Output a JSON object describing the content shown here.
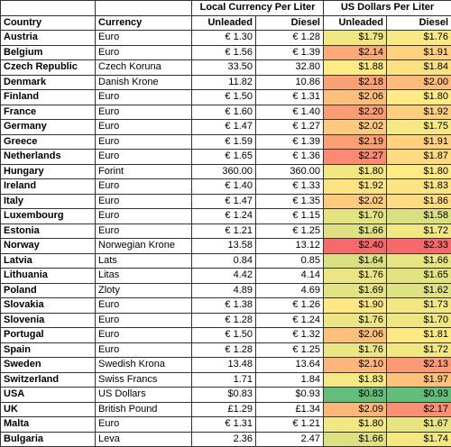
{
  "table": {
    "group_headers": [
      "Local Currency Per Liter",
      "US Dollars Per Liter"
    ],
    "columns": [
      "Country",
      "Currency",
      "Unleaded",
      "Diesel",
      "Unleaded",
      "Diesel"
    ],
    "rows": [
      [
        "Austria",
        "Euro",
        "€ 1.30",
        "€ 1.28",
        "$1.79",
        "$1.76"
      ],
      [
        "Belgium",
        "Euro",
        "€ 1.56",
        "€ 1.39",
        "$2.14",
        "$1.91"
      ],
      [
        "Czech Republic",
        "Czech Koruna",
        "33.50",
        "32.80",
        "$1.88",
        "$1.84"
      ],
      [
        "Denmark",
        "Danish Krone",
        "11.82",
        "10.86",
        "$2.18",
        "$2.00"
      ],
      [
        "Finland",
        "Euro",
        "€ 1.50",
        "€ 1.31",
        "$2.06",
        "$1.80"
      ],
      [
        "France",
        "Euro",
        "€ 1.60",
        "€ 1.40",
        "$2.20",
        "$1.92"
      ],
      [
        "Germany",
        "Euro",
        "€ 1.47",
        "€ 1.27",
        "$2.02",
        "$1.75"
      ],
      [
        "Greece",
        "Euro",
        "€ 1.59",
        "€ 1.39",
        "$2.19",
        "$1.91"
      ],
      [
        "Netherlands",
        "Euro",
        "€ 1.65",
        "€ 1.36",
        "$2.27",
        "$1.87"
      ],
      [
        "Hungary",
        "Forint",
        "360.00",
        "360.00",
        "$1.80",
        "$1.80"
      ],
      [
        "Ireland",
        "Euro",
        "€ 1.40",
        "€ 1.33",
        "$1.92",
        "$1.83"
      ],
      [
        "Italy",
        "Euro",
        "€ 1.47",
        "€ 1.35",
        "$2.02",
        "$1.86"
      ],
      [
        "Luxembourg",
        "Euro",
        "€ 1.24",
        "€ 1.15",
        "$1.70",
        "$1.58"
      ],
      [
        "Estonia",
        "Euro",
        "€ 1.21",
        "€ 1.25",
        "$1.66",
        "$1.72"
      ],
      [
        "Norway",
        "Norwegian Krone",
        "13.58",
        "13.12",
        "$2.40",
        "$2.33"
      ],
      [
        "Latvia",
        "Lats",
        "0.84",
        "0.85",
        "$1.64",
        "$1.66"
      ],
      [
        "Lithuania",
        "Litas",
        "4.42",
        "4.14",
        "$1.76",
        "$1.65"
      ],
      [
        "Poland",
        "Zloty",
        "4.89",
        "4.69",
        "$1.69",
        "$1.62"
      ],
      [
        "Slovakia",
        "Euro",
        "€ 1.38",
        "€ 1.26",
        "$1.90",
        "$1.73"
      ],
      [
        "Slovenia",
        "Euro",
        "€ 1.28",
        "€ 1.24",
        "$1.76",
        "$1.70"
      ],
      [
        "Portugal",
        "Euro",
        "€ 1.50",
        "€ 1.32",
        "$2.06",
        "$1.81"
      ],
      [
        "Spain",
        "Euro",
        "€ 1.28",
        "€ 1.25",
        "$1.76",
        "$1.72"
      ],
      [
        "Sweden",
        "Swedish Krona",
        "13.48",
        "13.64",
        "$2.10",
        "$2.13"
      ],
      [
        "Switzerland",
        "Swiss Francs",
        "1.71",
        "1.84",
        "$1.83",
        "$1.97"
      ],
      [
        "USA",
        "US Dollars",
        "$0.83",
        "$0.93",
        "$0.83",
        "$0.93"
      ],
      [
        "UK",
        "British Pound",
        "£1.29",
        "£1.34",
        "$2.09",
        "$2.17"
      ],
      [
        "Malta",
        "Euro",
        "€ 1.31",
        "€ 1.21",
        "$1.80",
        "$1.67"
      ],
      [
        "Bulgaria",
        "Leva",
        "2.36",
        "2.47",
        "$1.66",
        "$1.74"
      ]
    ],
    "color_scale": {
      "low": "#63be7b",
      "mid": "#ffeb84",
      "high": "#f8696b"
    }
  }
}
